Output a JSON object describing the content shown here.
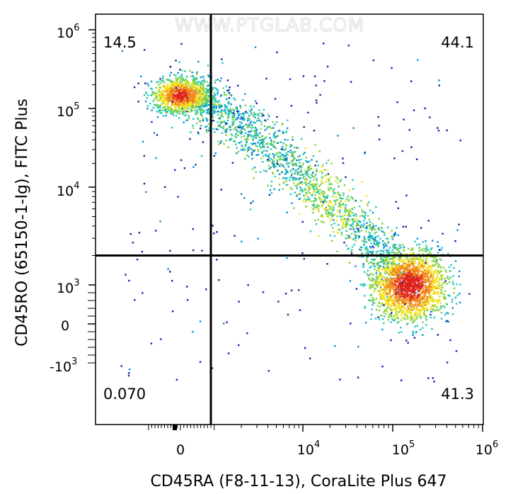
{
  "watermark": "WWW.PTGLAB.COM",
  "chart_data": {
    "type": "scatter",
    "subtype": "flow-cytometry-density-dot-plot",
    "xlabel": "CD45RA (F8-11-13), CoraLite Plus 647",
    "ylabel": "CD45RO (65150-1-Ig), FITC Plus",
    "x_scale": "biexponential",
    "y_scale": "biexponential",
    "x_ticks": [
      "0",
      "10^4",
      "10^5",
      "10^6"
    ],
    "y_ticks": [
      "10^6",
      "10^5",
      "10^4",
      "10^3",
      "0",
      "-10^3"
    ],
    "gates": {
      "x": 900,
      "y": 2000
    },
    "quadrants": [
      {
        "position": "top-left",
        "value": "14.5"
      },
      {
        "position": "top-right",
        "value": "44.1"
      },
      {
        "position": "bottom-left",
        "value": "0.070"
      },
      {
        "position": "bottom-right",
        "value": "41.3"
      }
    ],
    "populations": [
      {
        "name": "upper-left cluster",
        "x_center": 0,
        "y_center": 150000,
        "density": "high"
      },
      {
        "name": "diagonal transition",
        "x_from": 0,
        "x_to": 100000,
        "y_from": 150000,
        "y_to": 2000,
        "density": "medium"
      },
      {
        "name": "lower-right cluster",
        "x_center": 150000,
        "y_center": 1000,
        "density": "high"
      }
    ],
    "color_scale": [
      "#1a1aa6",
      "#0a8ad6",
      "#19c8c0",
      "#7ed23c",
      "#f2e21e",
      "#f48a1c",
      "#e0221c"
    ],
    "grid": false,
    "legend": "none"
  }
}
